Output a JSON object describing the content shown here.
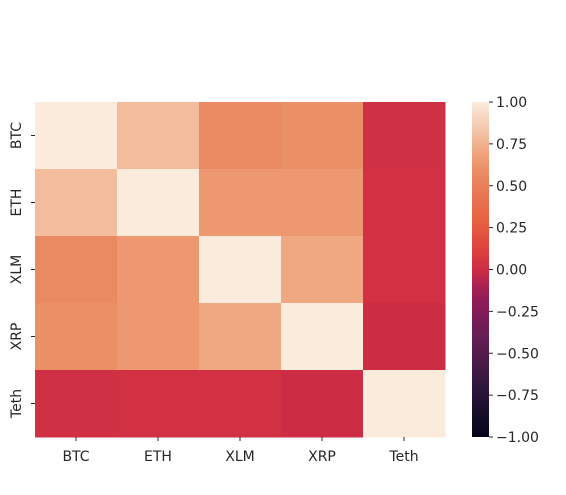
{
  "chart_data": {
    "type": "heatmap",
    "title": "",
    "xlabel": "",
    "ylabel": "",
    "x_labels": [
      "BTC",
      "ETH",
      "XLM",
      "XRP",
      "Teth"
    ],
    "y_labels": [
      "BTC",
      "ETH",
      "XLM",
      "XRP",
      "Teth"
    ],
    "matrix": [
      [
        1.0,
        0.79,
        0.58,
        0.6,
        0.02
      ],
      [
        0.79,
        1.0,
        0.64,
        0.64,
        0.03
      ],
      [
        0.58,
        0.64,
        1.0,
        0.71,
        0.03
      ],
      [
        0.6,
        0.64,
        0.71,
        1.0,
        0.0
      ],
      [
        0.02,
        0.03,
        0.03,
        0.0,
        1.0
      ]
    ],
    "colorbar": {
      "range": [
        -1.0,
        1.0
      ],
      "ticks": [
        "1.00",
        "0.75",
        "0.50",
        "0.25",
        "0.00",
        "−0.25",
        "−0.50",
        "−0.75",
        "−1.00"
      ],
      "tick_values": [
        1.0,
        0.75,
        0.5,
        0.25,
        0.0,
        -0.25,
        -0.5,
        -0.75,
        -1.0
      ],
      "colormap": "rocket"
    },
    "grid": false
  }
}
